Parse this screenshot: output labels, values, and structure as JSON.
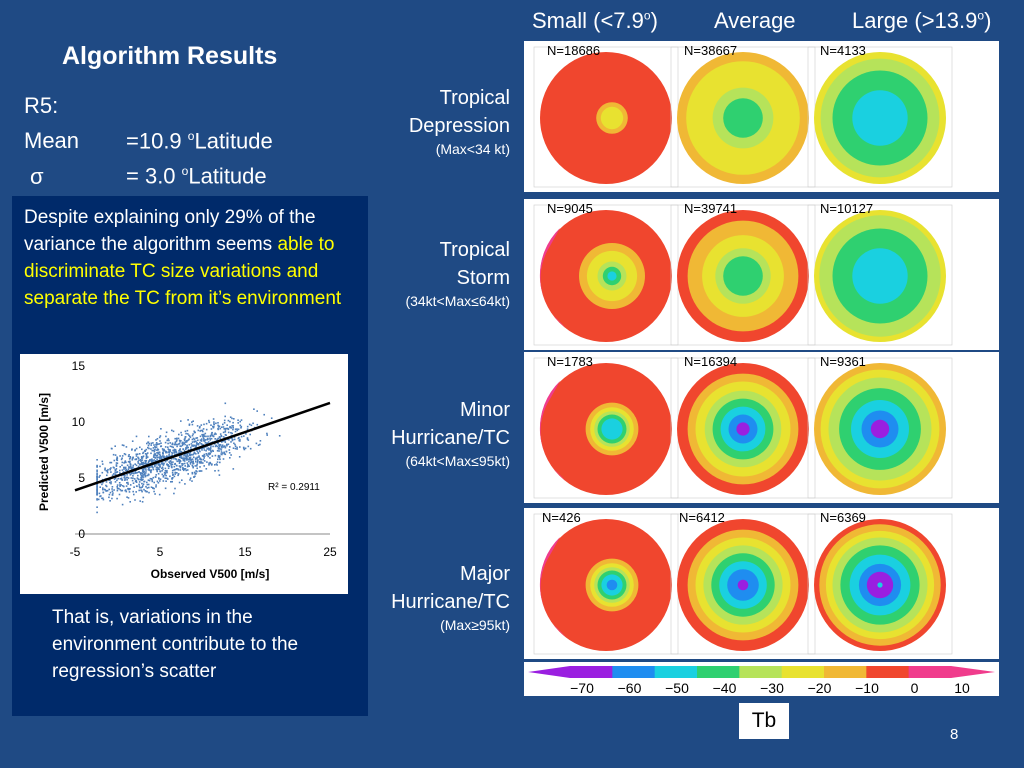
{
  "title": "Algorithm Results",
  "stats": {
    "label": "R5:",
    "mean_label": "Mean",
    "mean_value": "=10.9 ",
    "sigma_label": "σ",
    "sigma_value": "=  3.0 ",
    "deg": "o",
    "unit": "Latitude"
  },
  "paragraph1": {
    "part1": "Despite explaining only 29% of the variance the algorithm seems ",
    "highlight": "able to discriminate TC size variations and separate the TC from it’s environment"
  },
  "paragraph2": "That is, variations in the environment contribute to the regression’s scatter",
  "columns": {
    "small": "Small (<7.9",
    "average": "Average",
    "large": "Large (>13.9",
    "deg": "o",
    "close": ")"
  },
  "rows": [
    {
      "name1": "Tropical",
      "name2": "Depression",
      "range": "(Max<34 kt)",
      "n": [
        "N=18686",
        "N=38667",
        "N=4133"
      ]
    },
    {
      "name1": "Tropical",
      "name2": "Storm",
      "range": "(34kt<Max≤64kt)",
      "n": [
        "N=9045",
        "N=39741",
        "N=10127"
      ]
    },
    {
      "name1": "Minor",
      "name2": "Hurricane/TC",
      "range": "(64kt<Max≤95kt)",
      "n": [
        "N=1783",
        "N=16394",
        "N=9361"
      ]
    },
    {
      "name1": "Major",
      "name2": "Hurricane/TC",
      "range": "(Max≥95kt)",
      "n": [
        "N=426",
        "N=6412",
        "N=6369"
      ]
    }
  ],
  "colorbar": {
    "labels": [
      "−70",
      "−60",
      "−50",
      "−40",
      "−30",
      "−20",
      "−10",
      "0",
      "10"
    ],
    "colors": [
      "#9a1fe0",
      "#1f8df0",
      "#1ad0e0",
      "#2fd070",
      "#b6e35a",
      "#e8e230",
      "#f0b835",
      "#f0462e",
      "#f03c8c"
    ],
    "name": "Tb"
  },
  "chart_data": {
    "type": "scatter",
    "xlabel": "Observed V500 [m/s]",
    "ylabel": "Predicted V500 [m/s]",
    "xlim": [
      -5,
      25
    ],
    "ylim": [
      0,
      15
    ],
    "xticks": [
      "-5",
      "5",
      "15",
      "25"
    ],
    "yticks": [
      "0",
      "5",
      "10",
      "15"
    ],
    "point_color": "#4f81bd",
    "trendline": {
      "x": [
        -5,
        25
      ],
      "y": [
        3.9,
        11.7
      ]
    },
    "annotation": "R² = 0.2911"
  },
  "page_number": "8"
}
